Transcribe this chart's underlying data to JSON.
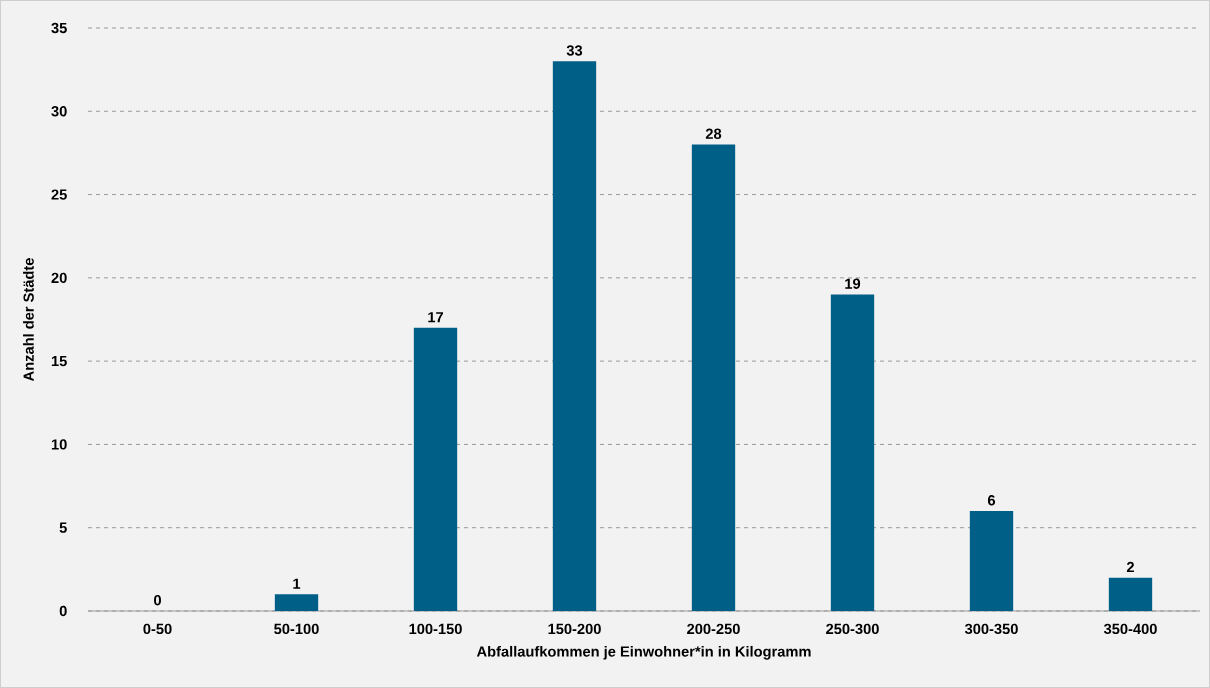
{
  "chart_data": {
    "type": "bar",
    "xlabel": "Abfallaufkommen je Einwohner*in in Kilogramm",
    "ylabel": "Anzahl der Städte",
    "categories": [
      "0-50",
      "50-100",
      "100-150",
      "150-200",
      "200-250",
      "250-300",
      "300-350",
      "350-400"
    ],
    "values": [
      0,
      1,
      17,
      33,
      28,
      19,
      6,
      2
    ],
    "color": "#005f87",
    "ylim": [
      0,
      35
    ],
    "yticks": [
      0,
      5,
      10,
      15,
      20,
      25,
      30,
      35
    ],
    "grid": "y",
    "data_labels": true
  }
}
